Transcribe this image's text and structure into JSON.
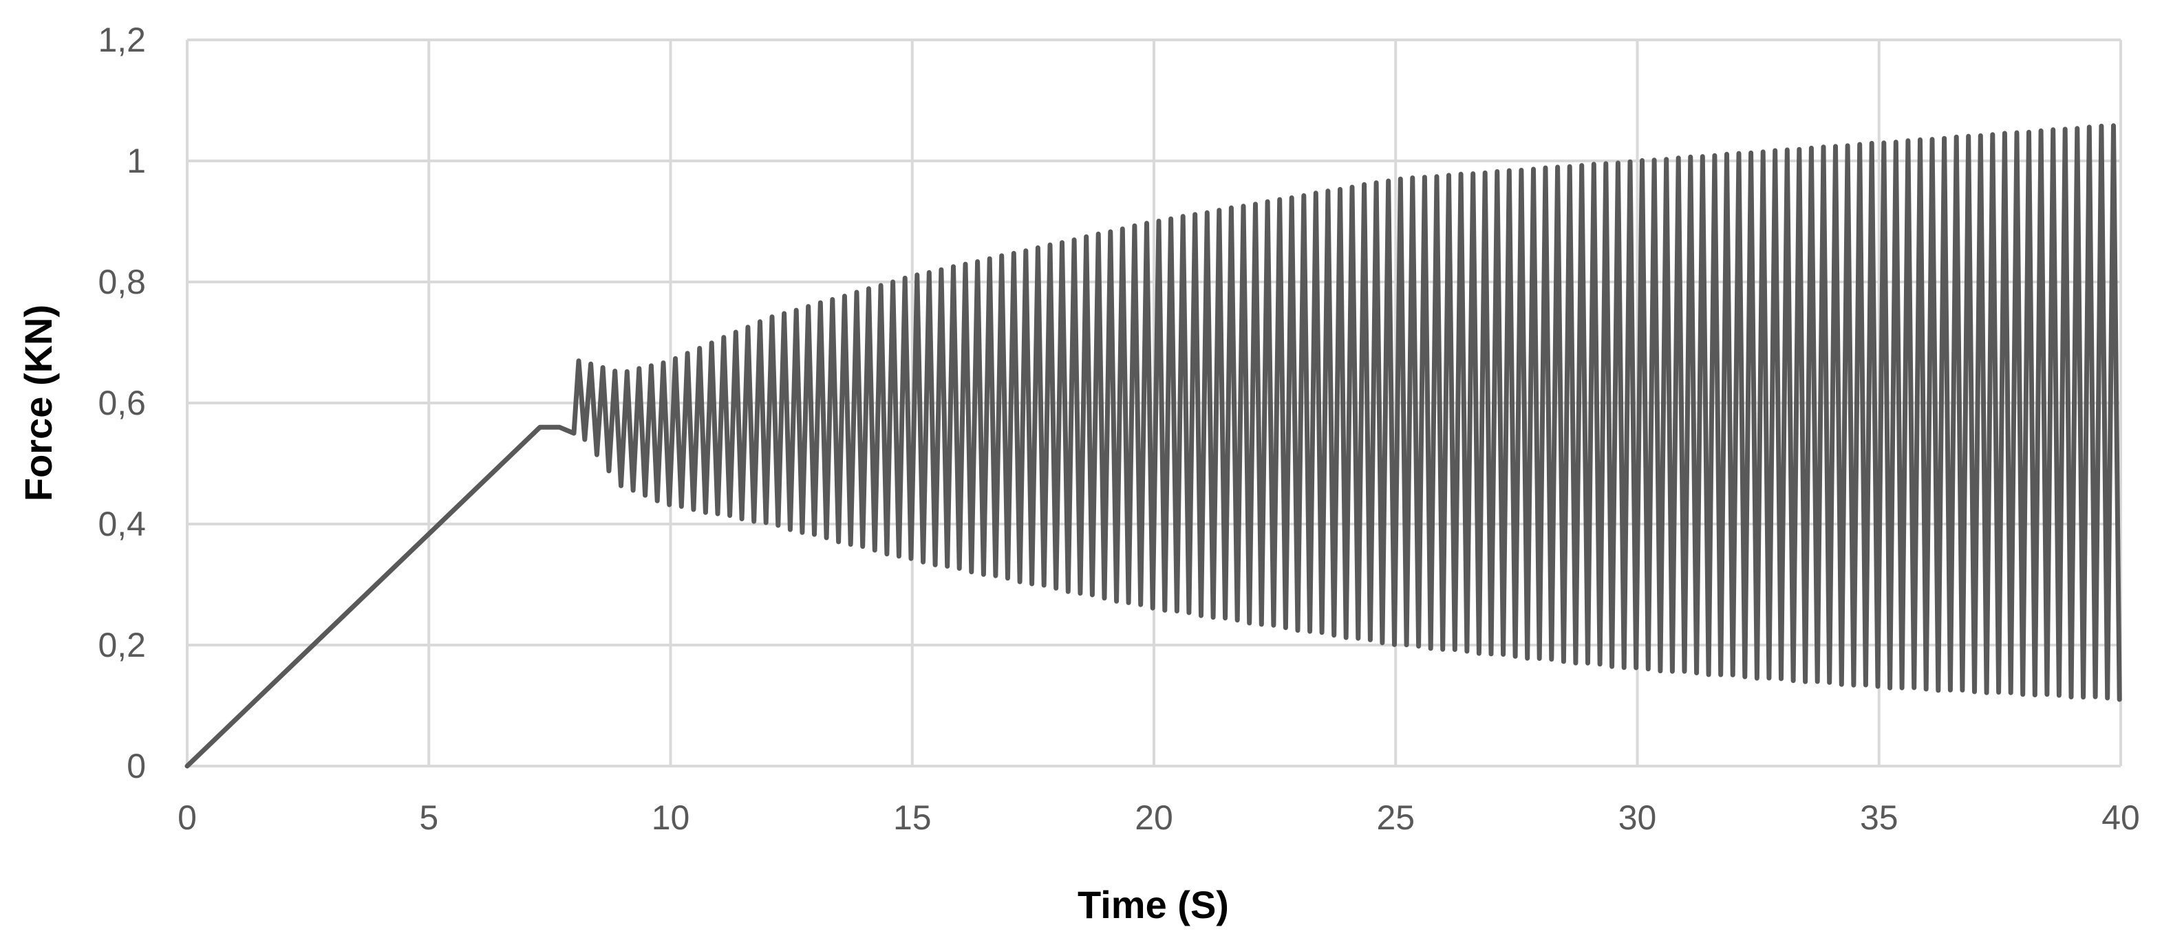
{
  "chart_data": {
    "type": "line",
    "title": "",
    "xlabel": "Time (S)",
    "ylabel": "Force (KN)",
    "xlim": [
      0,
      40
    ],
    "ylim": [
      0,
      1.2
    ],
    "x_ticks": [
      {
        "value": 0,
        "label": "0"
      },
      {
        "value": 5,
        "label": "5"
      },
      {
        "value": 10,
        "label": "10"
      },
      {
        "value": 15,
        "label": "15"
      },
      {
        "value": 20,
        "label": "20"
      },
      {
        "value": 25,
        "label": "25"
      },
      {
        "value": 30,
        "label": "30"
      },
      {
        "value": 35,
        "label": "35"
      },
      {
        "value": 40,
        "label": "40"
      }
    ],
    "y_ticks": [
      {
        "value": 0,
        "label": "0"
      },
      {
        "value": 0.2,
        "label": "0,2"
      },
      {
        "value": 0.4,
        "label": "0,4"
      },
      {
        "value": 0.6,
        "label": "0,6"
      },
      {
        "value": 0.8,
        "label": "0,8"
      },
      {
        "value": 1.0,
        "label": "1"
      },
      {
        "value": 1.2,
        "label": "1,2"
      }
    ],
    "grid": true,
    "legend": "none",
    "line_color": "#595959",
    "series": [
      {
        "description_points": {
          "ramp": [
            [
              0,
              0
            ],
            [
              7.3,
              0.56
            ],
            [
              7.7,
              0.56
            ],
            [
              8.0,
              0.55
            ]
          ],
          "oscillation_envelope": {
            "t": [
              8.1,
              9,
              10,
              12,
              15,
              20,
              25,
              30,
              35,
              40
            ],
            "upper": [
              0.67,
              0.65,
              0.67,
              0.74,
              0.81,
              0.9,
              0.97,
              1.0,
              1.03,
              1.06
            ],
            "lower": [
              0.55,
              0.46,
              0.43,
              0.4,
              0.34,
              0.26,
              0.2,
              0.16,
              0.13,
              0.11
            ]
          },
          "oscillation_period": 0.25
        }
      }
    ]
  }
}
